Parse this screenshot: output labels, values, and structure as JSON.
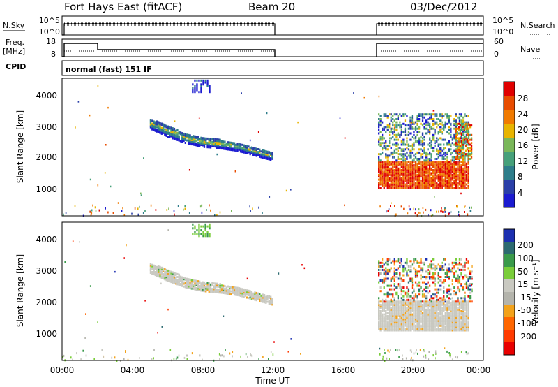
{
  "header": {
    "station": "Fort Hays East (fitACF)",
    "beam": "Beam 20",
    "date": "03/Dec/2012"
  },
  "top_strip": {
    "left_label": "N.Sky",
    "left_ticks": [
      "10^5",
      "10^0"
    ],
    "right_ticks": [
      "10^5",
      "10^0"
    ],
    "right_label": "N.Search"
  },
  "freq_strip": {
    "left_label_line1": "Freq.",
    "left_label_line2": "[MHz]",
    "left_ticks": [
      "18",
      "8"
    ],
    "right_ticks": [
      "60",
      "0"
    ],
    "right_label": "Nave",
    "cpid_label": "CPID",
    "cpid_value": "normal (fast) 151 IF"
  },
  "colors": {
    "power_scale": [
      "#1b1bd0",
      "#2a3fa8",
      "#2e7d8a",
      "#46a07a",
      "#7ab75a",
      "#e8b400",
      "#f07a00",
      "#e84c00",
      "#e00000"
    ],
    "velocity_scale": [
      "#1c2fb0",
      "#2c6a70",
      "#3a9a4a",
      "#7acd3a",
      "#c9c9c1",
      "#b4b4ac",
      "#f3a21a",
      "#ff6600",
      "#ff3a00",
      "#e80000"
    ],
    "ground_scatter": "#c9c9c1"
  },
  "chart_data": [
    {
      "type": "heatmap",
      "panel": "power",
      "ylabel": "Slant Range [km]",
      "yticks": [
        "1000",
        "2000",
        "3000",
        "4000"
      ],
      "ylim": [
        180,
        4500
      ],
      "xlim": [
        0,
        24
      ],
      "xticks": [
        "00:00",
        "04:00",
        "08:00",
        "12:00",
        "16:00",
        "20:00",
        "00:00"
      ],
      "colorbar": {
        "label": "Power [dB]",
        "ticks": [
          "4",
          "8",
          "12",
          "16",
          "20",
          "24",
          "28"
        ],
        "range": [
          0,
          30
        ]
      },
      "features": {
        "echo_band": {
          "x": [
            5.0,
            6.0,
            7.0,
            8.0,
            9.0,
            10.0,
            11.0,
            12.0
          ],
          "range_low": [
            2950,
            2700,
            2500,
            2380,
            2330,
            2250,
            2100,
            1950
          ],
          "range_high": [
            3250,
            3050,
            2800,
            2650,
            2600,
            2500,
            2350,
            2200
          ]
        },
        "upper_patch": {
          "x": [
            7.4,
            8.4
          ],
          "range": [
            4100,
            4500
          ]
        },
        "evening_block": {
          "x": [
            18.0,
            23.2
          ],
          "range": [
            1100,
            3400
          ],
          "strong_range": [
            1100,
            1900
          ],
          "tail": {
            "x": [
              22.4,
              23.3
            ],
            "range": [
              2000,
              3100
            ]
          }
        }
      }
    },
    {
      "type": "heatmap",
      "panel": "velocity",
      "ylabel": "Slant Range [km]",
      "yticks": [
        "1000",
        "2000",
        "3000",
        "4000"
      ],
      "ylim": [
        180,
        4500
      ],
      "xlim": [
        0,
        24
      ],
      "xticks": [
        "00:00",
        "04:00",
        "08:00",
        "12:00",
        "16:00",
        "20:00",
        "00:00"
      ],
      "xlabel": "Time UT",
      "colorbar": {
        "label": "Velocity [m s⁻¹]",
        "ticks": [
          "200",
          "100",
          "50",
          "15",
          "-15",
          "-50",
          "-100",
          "-200"
        ],
        "range": [
          -250,
          250
        ]
      },
      "features": {
        "echo_band": {
          "x": [
            5.0,
            6.0,
            7.0,
            8.0,
            9.0,
            10.0,
            11.0,
            12.0
          ],
          "range_low": [
            2950,
            2700,
            2500,
            2380,
            2330,
            2250,
            2100,
            1950
          ],
          "range_high": [
            3250,
            3050,
            2800,
            2650,
            2600,
            2500,
            2350,
            2200
          ]
        },
        "upper_patch": {
          "x": [
            7.4,
            8.4
          ],
          "range": [
            4100,
            4500
          ]
        },
        "evening_block": {
          "x": [
            18.0,
            23.2
          ],
          "range": [
            1150,
            2050
          ],
          "scatter_range": [
            2050,
            3400
          ]
        }
      }
    }
  ]
}
